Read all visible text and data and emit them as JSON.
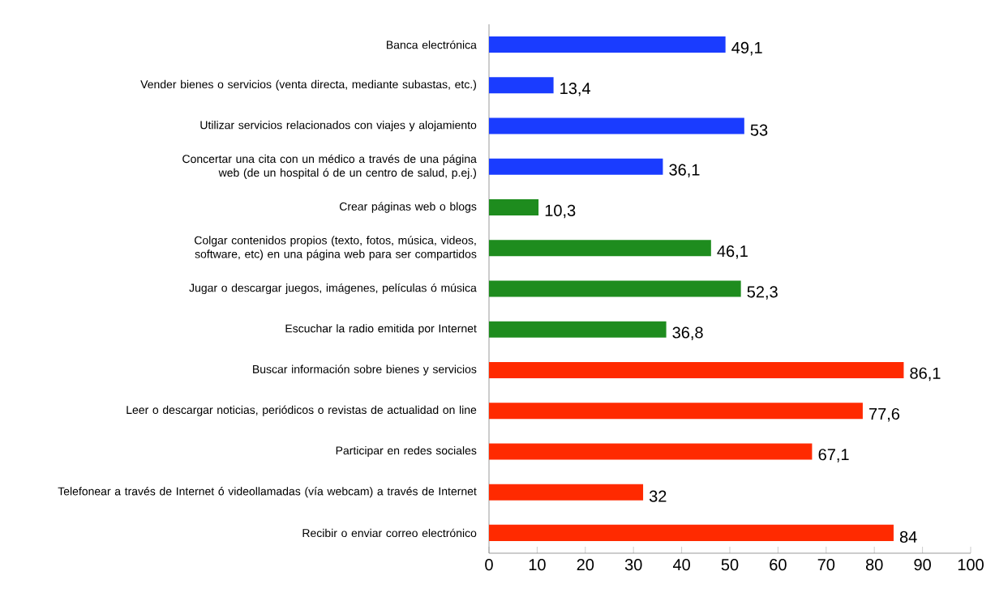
{
  "chart_data": {
    "type": "bar",
    "orientation": "horizontal",
    "categories": [
      "Banca electrónica",
      "Vender bienes o servicios (venta directa, mediante subastas, etc.)",
      "Utilizar servicios relacionados con viajes y alojamiento",
      "Concertar una cita con un médico a través de una página web (de un hospital ó de un centro de salud, p.ej.)",
      "Crear páginas web o blogs",
      "Colgar contenidos propios (texto, fotos, música, videos, software, etc) en una página web para ser compartidos",
      "Jugar o descargar juegos, imágenes, películas ó música",
      "Escuchar la radio emitida por Internet",
      "Buscar información sobre bienes y servicios",
      "Leer o descargar noticias, periódicos o revistas de actualidad on line",
      "Participar en redes sociales",
      "Telefonear a través de Internet ó videollamadas (vía webcam) a través de Internet",
      "Recibir o enviar correo electrónico"
    ],
    "values": [
      49.1,
      13.4,
      53,
      36.1,
      10.3,
      46.1,
      52.3,
      36.8,
      86.1,
      77.6,
      67.1,
      32,
      84
    ],
    "value_labels": [
      "49,1",
      "13,4",
      "53",
      "36,1",
      "10,3",
      "46,1",
      "52,3",
      "36,8",
      "86,1",
      "77,6",
      "67,1",
      "32",
      "84"
    ],
    "colors": [
      "#1a3cff",
      "#1a3cff",
      "#1a3cff",
      "#1a3cff",
      "#1e8c1e",
      "#1e8c1e",
      "#1e8c1e",
      "#1e8c1e",
      "#ff2a00",
      "#ff2a00",
      "#ff2a00",
      "#ff2a00",
      "#ff2a00"
    ],
    "xlim": [
      0,
      100
    ],
    "xticks": [
      0,
      10,
      20,
      30,
      40,
      50,
      60,
      70,
      80,
      90,
      100
    ],
    "grid": false
  }
}
